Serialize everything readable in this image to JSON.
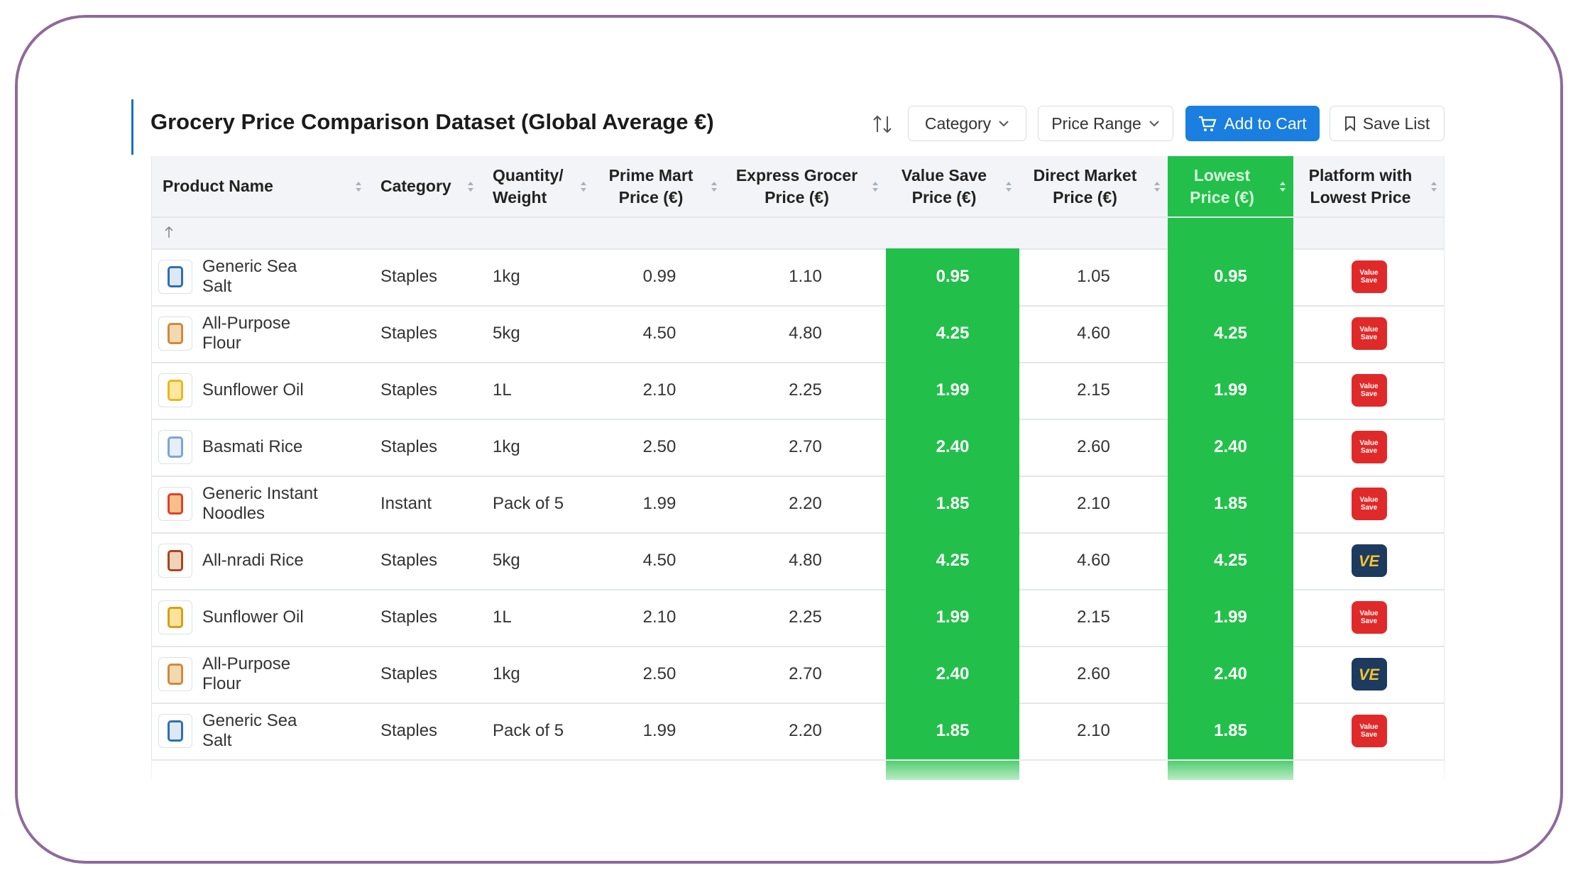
{
  "header": {
    "title": "Grocery Price Comparison Dataset (Global Average €)"
  },
  "controls": {
    "category": "Category",
    "price_range": "Price Range",
    "add_to_cart": "Add to Cart",
    "save_list": "Save List"
  },
  "table": {
    "columns": [
      {
        "key": "product",
        "lines": [
          "Product Name"
        ]
      },
      {
        "key": "category",
        "lines": [
          "Category"
        ]
      },
      {
        "key": "quantity",
        "lines": [
          "Quantity/",
          "Weight"
        ]
      },
      {
        "key": "prime",
        "lines": [
          "Prime Mart",
          "Price (€)"
        ]
      },
      {
        "key": "express",
        "lines": [
          "Express Grocer",
          "Price (€)"
        ]
      },
      {
        "key": "value_save",
        "lines": [
          "Value Save",
          "Price (€)"
        ]
      },
      {
        "key": "direct",
        "lines": [
          "Direct Market",
          "Price (€)"
        ]
      },
      {
        "key": "lowest",
        "lines": [
          "Lowest",
          "Price (€)"
        ]
      },
      {
        "key": "platform",
        "lines": [
          "Platform with",
          "Lowest Price"
        ]
      }
    ],
    "rows": [
      {
        "product": "Generic Sea Salt",
        "category": "Staples",
        "quantity": "1kg",
        "prime": "0.99",
        "express": "1.10",
        "value_save": "0.95",
        "direct": "1.05",
        "lowest": "0.95",
        "platform": "Value Save"
      },
      {
        "product": "All-Purpose Flour",
        "category": "Staples",
        "quantity": "5kg",
        "prime": "4.50",
        "express": "4.80",
        "value_save": "4.25",
        "direct": "4.60",
        "lowest": "4.25",
        "platform": "Value Save"
      },
      {
        "product": "Sunflower Oil",
        "category": "Staples",
        "quantity": "1L",
        "prime": "2.10",
        "express": "2.25",
        "value_save": "1.99",
        "direct": "2.15",
        "lowest": "1.99",
        "platform": "Value Save"
      },
      {
        "product": "Basmati Rice",
        "category": "Staples",
        "quantity": "1kg",
        "prime": "2.50",
        "express": "2.70",
        "value_save": "2.40",
        "direct": "2.60",
        "lowest": "2.40",
        "platform": "Value Save"
      },
      {
        "product": "Generic Instant Noodles",
        "category": "Instant",
        "quantity": "Pack of 5",
        "prime": "1.99",
        "express": "2.20",
        "value_save": "1.85",
        "direct": "2.10",
        "lowest": "1.85",
        "platform": "Value Save"
      },
      {
        "product": "All-nradi Rice",
        "category": "Staples",
        "quantity": "5kg",
        "prime": "4.50",
        "express": "4.80",
        "value_save": "4.25",
        "direct": "4.60",
        "lowest": "4.25",
        "platform": "VE"
      },
      {
        "product": "Sunflower Oil",
        "category": "Staples",
        "quantity": "1L",
        "prime": "2.10",
        "express": "2.25",
        "value_save": "1.99",
        "direct": "2.15",
        "lowest": "1.99",
        "platform": "Value Save"
      },
      {
        "product": "All-Purpose Flour",
        "category": "Staples",
        "quantity": "1kg",
        "prime": "2.50",
        "express": "2.70",
        "value_save": "2.40",
        "direct": "2.60",
        "lowest": "2.40",
        "platform": "VE"
      },
      {
        "product": "Generic Sea Salt",
        "category": "Staples",
        "quantity": "Pack of 5",
        "prime": "1.99",
        "express": "2.20",
        "value_save": "1.85",
        "direct": "2.10",
        "lowest": "1.85",
        "platform": "Value Save"
      }
    ]
  }
}
